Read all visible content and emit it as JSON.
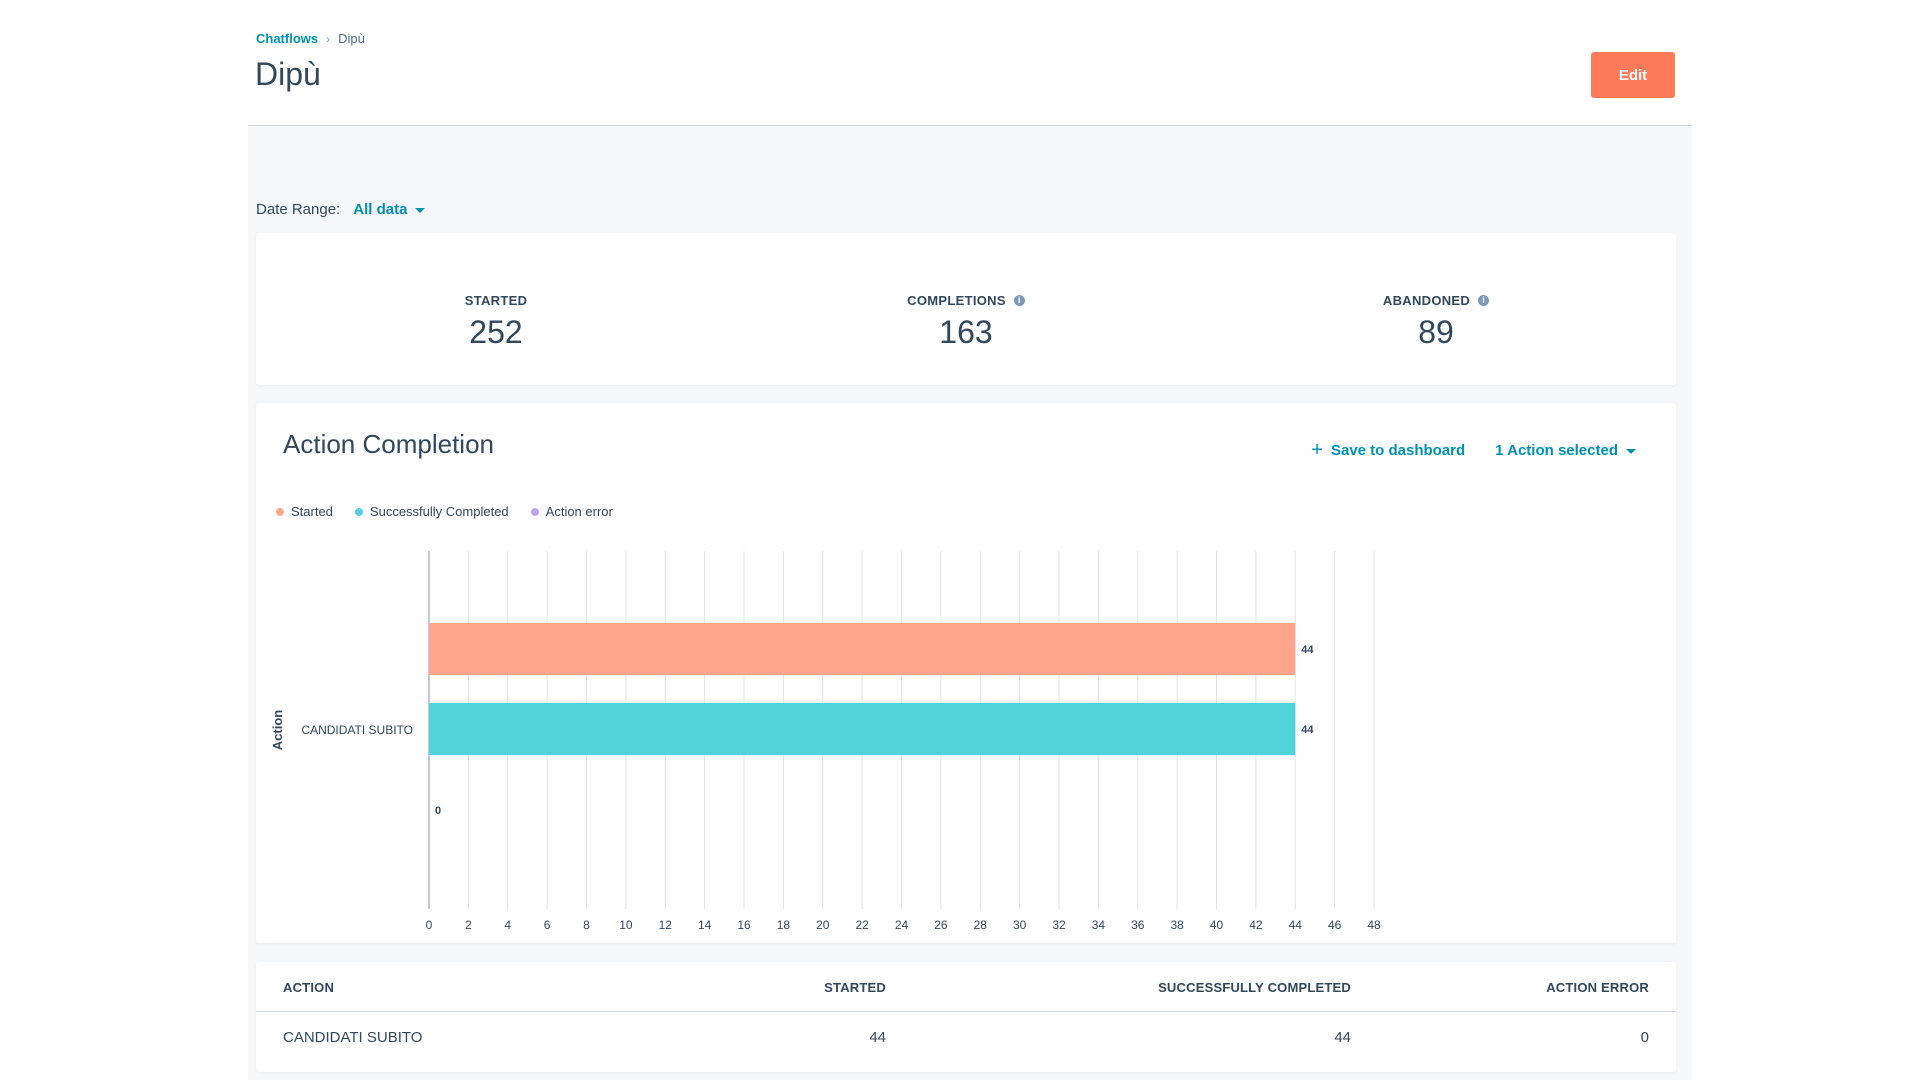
{
  "breadcrumb": {
    "parent": "Chatflows",
    "separator": "›",
    "current": "Dipù"
  },
  "page": {
    "title": "Dipù",
    "edit_label": "Edit"
  },
  "date_range": {
    "label": "Date Range:",
    "value": "All data"
  },
  "stats": [
    {
      "label": "STARTED",
      "value": "252",
      "has_info": false
    },
    {
      "label": "COMPLETIONS",
      "value": "163",
      "has_info": true
    },
    {
      "label": "ABANDONED",
      "value": "89",
      "has_info": true
    }
  ],
  "chart_panel": {
    "title": "Action Completion",
    "save_label": "Save to dashboard",
    "action_selector": "1 Action selected"
  },
  "chart_data": {
    "type": "bar",
    "orientation": "horizontal",
    "title": "Action Completion",
    "ylabel": "Action",
    "xlabel": "",
    "categories": [
      "CANDIDATI SUBITO"
    ],
    "series": [
      {
        "name": "Started",
        "color": "#ffa58d",
        "values": [
          44
        ]
      },
      {
        "name": "Successfully Completed",
        "color": "#51d3d9",
        "values": [
          44
        ]
      },
      {
        "name": "Action error",
        "color": "#b9a8e8",
        "values": [
          0
        ]
      }
    ],
    "xlim": [
      0,
      48
    ],
    "xticks": [
      0,
      2,
      4,
      6,
      8,
      10,
      12,
      14,
      16,
      18,
      20,
      22,
      24,
      26,
      28,
      30,
      32,
      34,
      36,
      38,
      40,
      42,
      44,
      46,
      48
    ],
    "grid": true,
    "legend": "top-left"
  },
  "table": {
    "headers": {
      "action": "ACTION",
      "started": "STARTED",
      "success": "SUCCESSFULLY COMPLETED",
      "error": "ACTION ERROR"
    },
    "rows": [
      {
        "action": "CANDIDATI SUBITO",
        "started": "44",
        "success": "44",
        "error": "0"
      }
    ]
  },
  "colors": {
    "accent": "#0091ae",
    "primary_button": "#ff7a59",
    "text": "#33475b"
  }
}
